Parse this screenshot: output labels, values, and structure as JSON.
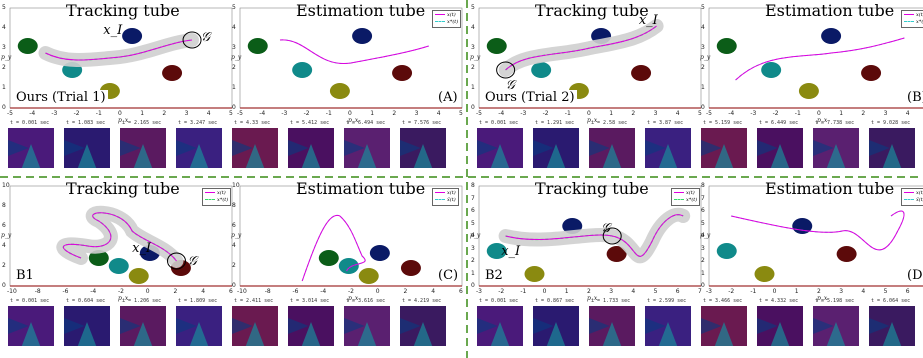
{
  "panels": [
    {
      "id": "A",
      "title_left": "Tracking tube",
      "title_right": "Estimation tube",
      "tag_left": "Ours (Trial 1)",
      "tag_right": "(A)",
      "legend_left": [],
      "legend_right": [
        "x(t)",
        "x*(t)"
      ],
      "start_symbol": "x_I",
      "goal_symbol": "𝒢",
      "xticks": [
        "-5",
        "-4",
        "-3",
        "-2",
        "-1",
        "0",
        "1",
        "2",
        "3",
        "4",
        "5"
      ],
      "yticks": [
        "0",
        "1",
        "2",
        "3",
        "4",
        "5"
      ],
      "xlabel": "p_x",
      "ylabel": "p_y",
      "times": [
        "t = 0.001 sec",
        "t = 1.083 sec",
        "t = 2.165 sec",
        "t = 3.247 sec",
        "t = 4.33 sec",
        "t = 5.412 sec",
        "t = 6.494 sec",
        "t = 7.576 sec"
      ]
    },
    {
      "id": "B",
      "title_left": "Tracking tube",
      "title_right": "Estimation tube",
      "tag_left": "Ours (Trial 2)",
      "tag_right": "(B)",
      "legend_left": [],
      "legend_right": [
        "x(t)",
        "x*(t)"
      ],
      "start_symbol": "x_I",
      "goal_symbol": "𝒢",
      "xticks": [
        "-5",
        "-4",
        "-3",
        "-2",
        "-1",
        "0",
        "1",
        "2",
        "3",
        "4",
        "5"
      ],
      "yticks": [
        "0",
        "1",
        "2",
        "3",
        "4",
        "5"
      ],
      "xlabel": "p_x",
      "ylabel": "p_y",
      "times": [
        "t = 0.001 sec",
        "t = 1.291 sec",
        "t = 2.58 sec",
        "t = 3.87 sec",
        "t = 5.159 sec",
        "t = 6.449 sec",
        "t = 7.738 sec",
        "t = 9.028 sec"
      ]
    },
    {
      "id": "B1",
      "title_left": "Tracking tube",
      "title_right": "Estimation tube",
      "tag_left": "B1",
      "tag_right": "(C)",
      "legend_left": [
        "x(t)",
        "x*(t)"
      ],
      "legend_right": [
        "x(t)",
        "x̂(t)"
      ],
      "start_symbol": "x_I",
      "goal_symbol": "𝒢",
      "xticks": [
        "-10",
        "-8",
        "-6",
        "-4",
        "-2",
        "0",
        "2",
        "4",
        "6"
      ],
      "yticks": [
        "0",
        "2",
        "4",
        "6",
        "8",
        "10"
      ],
      "xlabel": "p_x",
      "ylabel": "p_y",
      "times": [
        "t = 0.001 sec",
        "t = 0.604 sec",
        "t = 1.206 sec",
        "t = 1.809 sec",
        "t = 2.411 sec",
        "t = 3.014 sec",
        "t = 3.616 sec",
        "t = 4.219 sec"
      ]
    },
    {
      "id": "B2",
      "title_left": "Tracking tube",
      "title_right": "Estimation tube",
      "tag_left": "B2",
      "tag_right": "(D)",
      "legend_left": [
        "x(t)",
        "x*(t)"
      ],
      "legend_right": [
        "x(t)",
        "x̂(t)"
      ],
      "start_symbol": "x_I",
      "goal_symbol": "𝒢",
      "xticks": [
        "-3",
        "-2",
        "-1",
        "0",
        "1",
        "2",
        "3",
        "4",
        "5",
        "6",
        "7"
      ],
      "yticks": [
        "0",
        "1",
        "2",
        "3",
        "4",
        "5",
        "6",
        "7",
        "8"
      ],
      "xlabel": "p_x",
      "ylabel": "p_y",
      "times": [
        "t = 0.001 sec",
        "t = 0.867 sec",
        "t = 1.733 sec",
        "t = 2.599 sec",
        "t = 3.466 sec",
        "t = 4.332 sec",
        "t = 5.198 sec",
        "t = 6.064 sec"
      ]
    }
  ],
  "colors": {
    "trajectory": "#e000e0",
    "reference": "#33dd66",
    "estimate": "#33cccc",
    "tube": "#cfcfcf",
    "divider": "#6aa84f",
    "axis": "#a03030",
    "obstacle_green": "#0b5d18",
    "obstacle_teal": "#108a8a",
    "obstacle_navy": "#0a1a66",
    "obstacle_maroon": "#5c0a0a",
    "obstacle_olive": "#8a8a10",
    "frame_base": "#3a1060"
  }
}
